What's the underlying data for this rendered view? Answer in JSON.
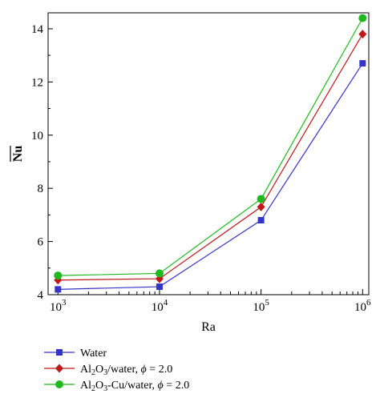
{
  "chart_data": {
    "type": "line",
    "x_scale": "log",
    "x": [
      1000,
      10000,
      100000,
      1000000
    ],
    "x_tick_labels": [
      {
        "base": "10",
        "exp": "3"
      },
      {
        "base": "10",
        "exp": "4"
      },
      {
        "base": "10",
        "exp": "5"
      },
      {
        "base": "10",
        "exp": "6"
      }
    ],
    "xlabel": "Ra",
    "ylabel": "Nu",
    "ylabel_overline": true,
    "xlim": [
      800,
      1150000
    ],
    "ylim": [
      4,
      14.6
    ],
    "y_ticks": [
      4,
      6,
      8,
      10,
      12,
      14
    ],
    "grid": false,
    "legend_position": "bottom-left",
    "series": [
      {
        "name": "Water",
        "legend_parts": [
          {
            "t": "Water"
          }
        ],
        "color": "#3434c8",
        "marker": "square",
        "values": [
          4.2,
          4.3,
          6.8,
          12.7
        ]
      },
      {
        "name": "Al2O3/water, ϕ = 2.0",
        "legend_parts": [
          {
            "t": "Al"
          },
          {
            "t": "2",
            "sub": true
          },
          {
            "t": "O"
          },
          {
            "t": "3",
            "sub": true
          },
          {
            "t": "/water, "
          },
          {
            "t": "ϕ",
            "italic": true
          },
          {
            "t": " = 2.0"
          }
        ],
        "color": "#c01818",
        "marker": "diamond",
        "values": [
          4.55,
          4.6,
          7.3,
          13.8
        ]
      },
      {
        "name": "Al2O3-Cu/water, ϕ = 2.0",
        "legend_parts": [
          {
            "t": "Al"
          },
          {
            "t": "2",
            "sub": true
          },
          {
            "t": "O"
          },
          {
            "t": "3",
            "sub": true
          },
          {
            "t": "-Cu/water, "
          },
          {
            "t": "ϕ",
            "italic": true
          },
          {
            "t": " = 2.0"
          }
        ],
        "color": "#1fb81f",
        "marker": "circle",
        "values": [
          4.72,
          4.8,
          7.6,
          14.4
        ]
      }
    ]
  }
}
